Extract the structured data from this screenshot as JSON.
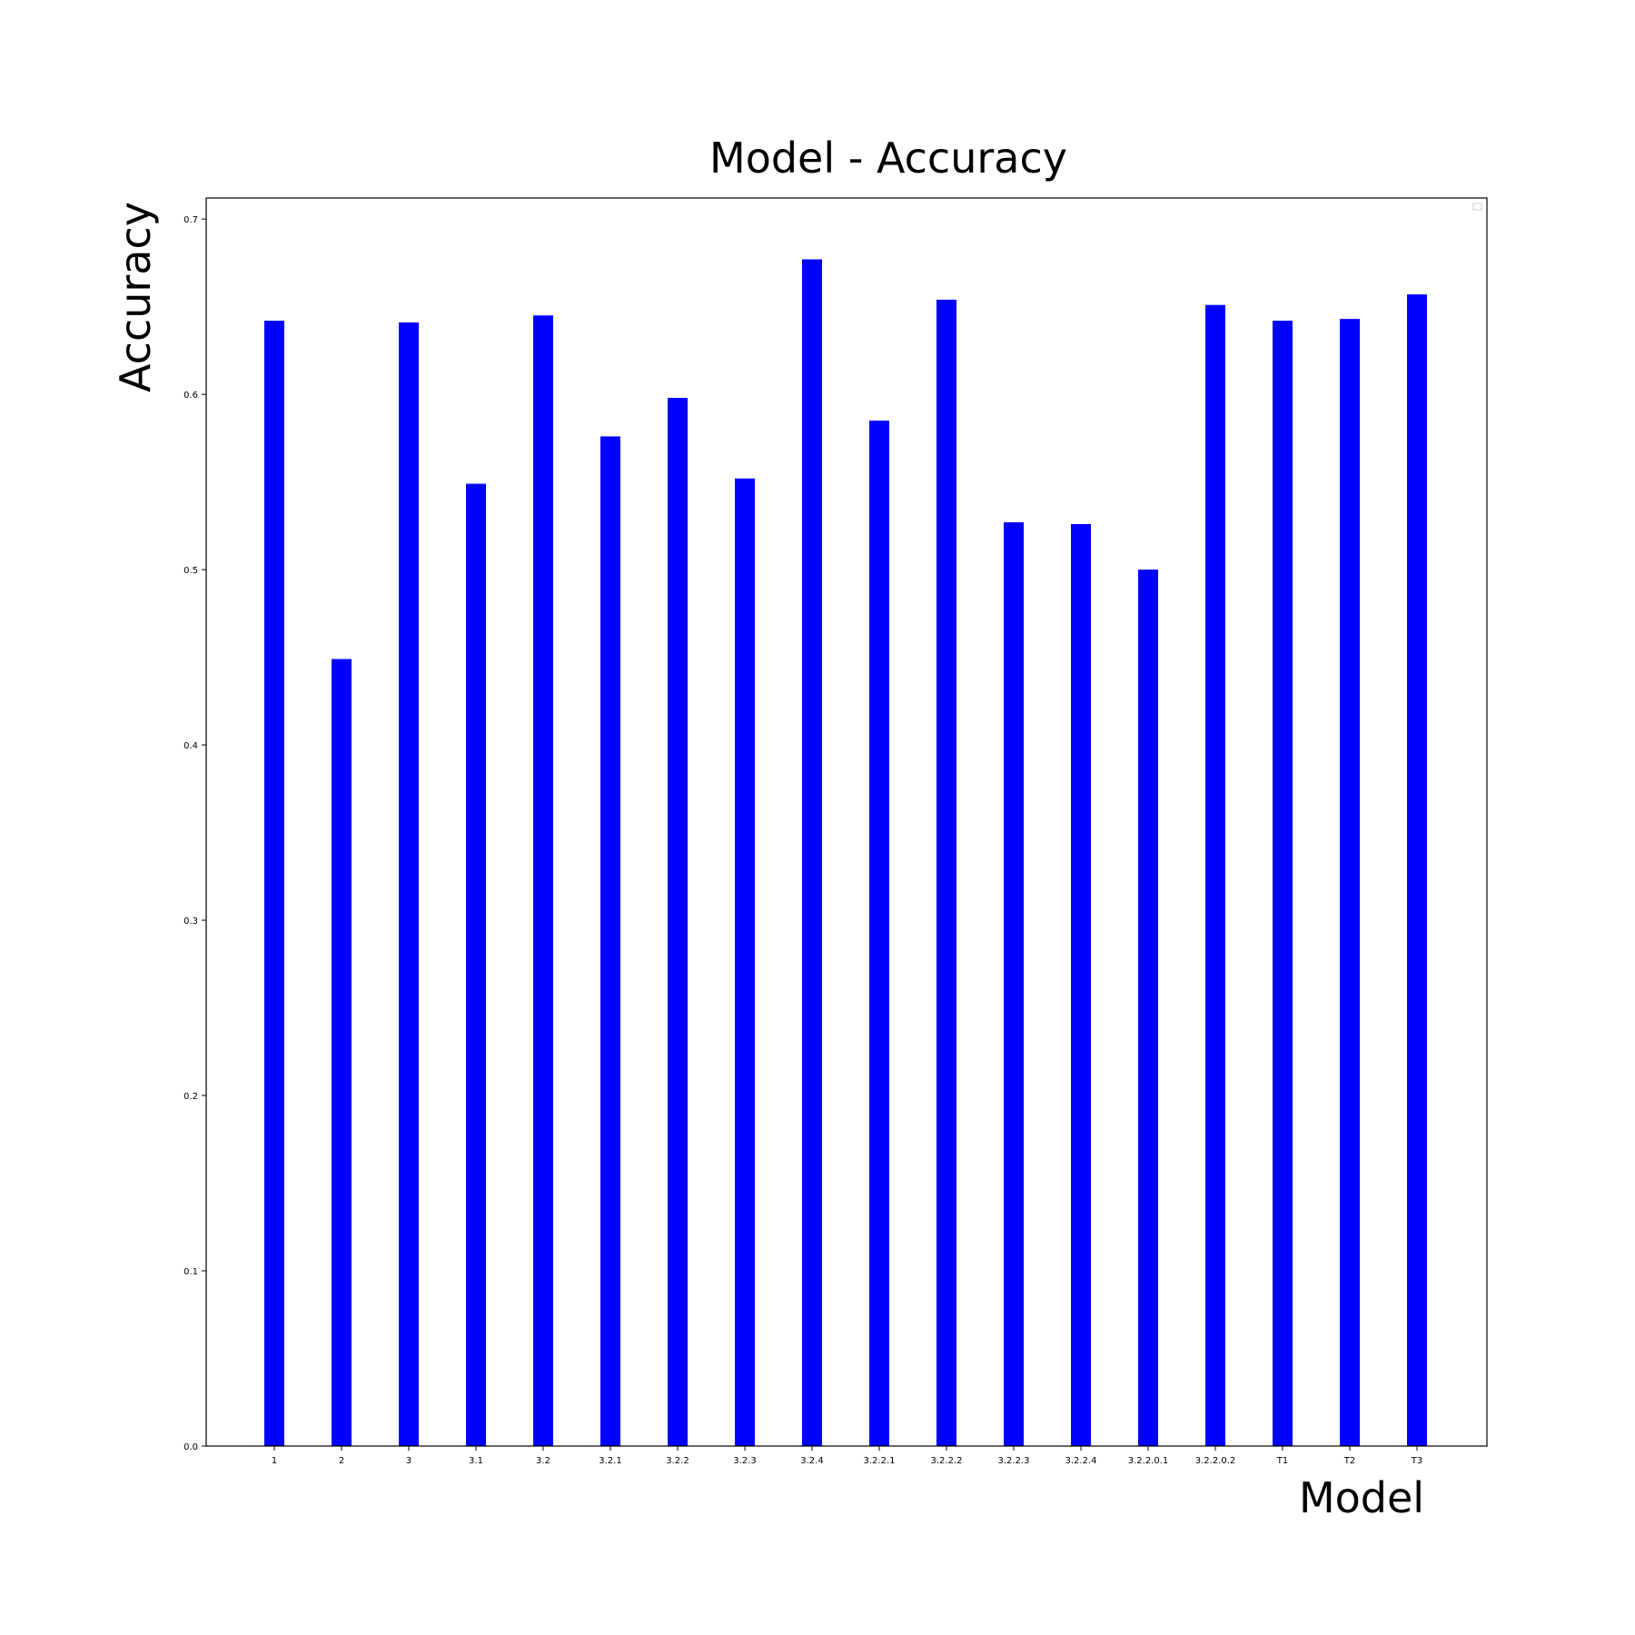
{
  "chart_data": {
    "type": "bar",
    "title": "Model - Accuracy",
    "xlabel": "Model",
    "ylabel": "Accuracy",
    "categories": [
      "1",
      "2",
      "3",
      "3.1",
      "3.2",
      "3.2.1",
      "3.2.2",
      "3.2.3",
      "3.2.4",
      "3.2.2.1",
      "3.2.2.2",
      "3.2.2.3",
      "3.2.2.4",
      "3.2.2.0.1",
      "3.2.2.0.2",
      "T1",
      "T2",
      "T3"
    ],
    "values": [
      0.642,
      0.449,
      0.641,
      0.549,
      0.645,
      0.576,
      0.598,
      0.552,
      0.677,
      0.585,
      0.654,
      0.527,
      0.526,
      0.5,
      0.651,
      0.642,
      0.643,
      0.657
    ],
    "yticks": [
      "0.0",
      "0.1",
      "0.2",
      "0.3",
      "0.4",
      "0.5",
      "0.6",
      "0.7"
    ],
    "ylim": [
      0,
      0.712
    ],
    "grid": false,
    "legend": "top-right, empty",
    "bar_color": "#0000ff"
  }
}
